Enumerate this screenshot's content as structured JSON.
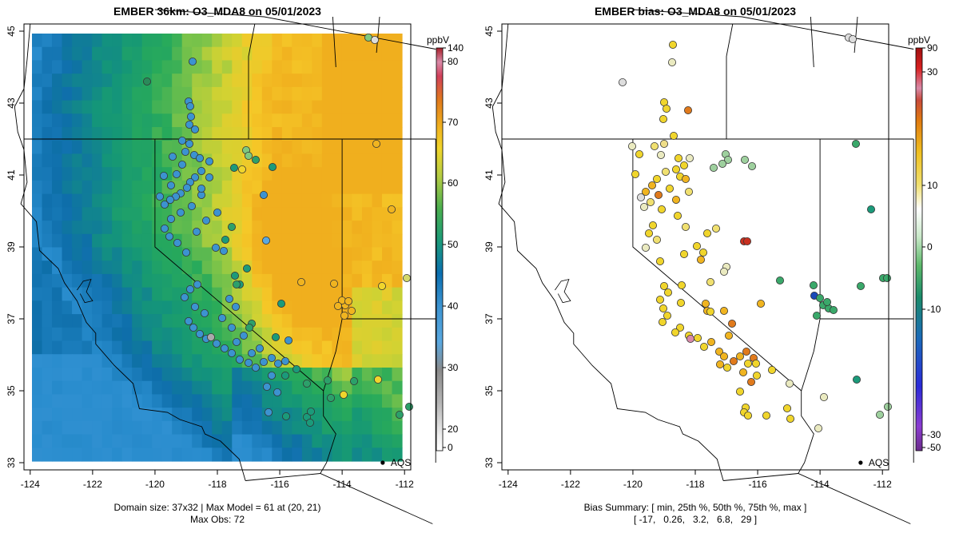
{
  "chart_data": [
    {
      "type": "heatmap",
      "title": "EMBER 36km: O3_MDA8 on 05/01/2023",
      "x_ticks": [
        "-124",
        "-122",
        "-120",
        "-118",
        "-116",
        "-114",
        "-112"
      ],
      "x_tick_values": [
        -124,
        -122,
        -120,
        -118,
        -116,
        -114,
        -112
      ],
      "y_ticks": [
        "33",
        "35",
        "37",
        "39",
        "41",
        "43",
        "45"
      ],
      "y_tick_values": [
        33,
        35,
        37,
        39,
        41,
        43,
        45
      ],
      "xlim": [
        -124.2,
        -111.8
      ],
      "ylim": [
        32.8,
        45.2
      ],
      "colorbar": {
        "label": "ppbV",
        "tick_labels": [
          "140",
          "80",
          "70",
          "60",
          "50",
          "40",
          "30",
          "20",
          "0"
        ],
        "tick_values": [
          140,
          80,
          70,
          60,
          50,
          40,
          30,
          20,
          0
        ]
      },
      "annotation": "AQS",
      "annotation_point": [
        -112.7,
        33.0
      ],
      "footer": [
        "Domain size: 37x32 | Max Model = 61 at (20, 21)",
        "Max Obs: 72"
      ]
    },
    {
      "type": "scatter",
      "title": "EMBER bias: O3_MDA8 on 05/01/2023",
      "x_ticks": [
        "-124",
        "-122",
        "-120",
        "-118",
        "-116",
        "-114",
        "-112"
      ],
      "x_tick_values": [
        -124,
        -122,
        -120,
        -118,
        -116,
        -114,
        -112
      ],
      "y_ticks": [
        "33",
        "35",
        "37",
        "39",
        "41",
        "43",
        "45"
      ],
      "y_tick_values": [
        33,
        35,
        37,
        39,
        41,
        43,
        45
      ],
      "xlim": [
        -124.2,
        -111.8
      ],
      "ylim": [
        32.8,
        45.2
      ],
      "colorbar": {
        "label": "ppbV",
        "tick_labels": [
          "90",
          "30",
          "10",
          "0",
          "-10",
          "-30",
          "-50"
        ],
        "tick_values": [
          90,
          30,
          10,
          0,
          -10,
          -30,
          -50
        ]
      },
      "annotation": "AQS",
      "annotation_point": [
        -112.7,
        33.0
      ],
      "summary": {
        "min": -17,
        "p25": 0.26,
        "median": 3.2,
        "p75": 6.8,
        "max": 29
      },
      "footer": [
        "Bias Summary: [ min, 25th %, 50th %, 75th %, max ]",
        "[ -17,   0.26,   3.2,   6.8,   29 ]"
      ]
    }
  ]
}
